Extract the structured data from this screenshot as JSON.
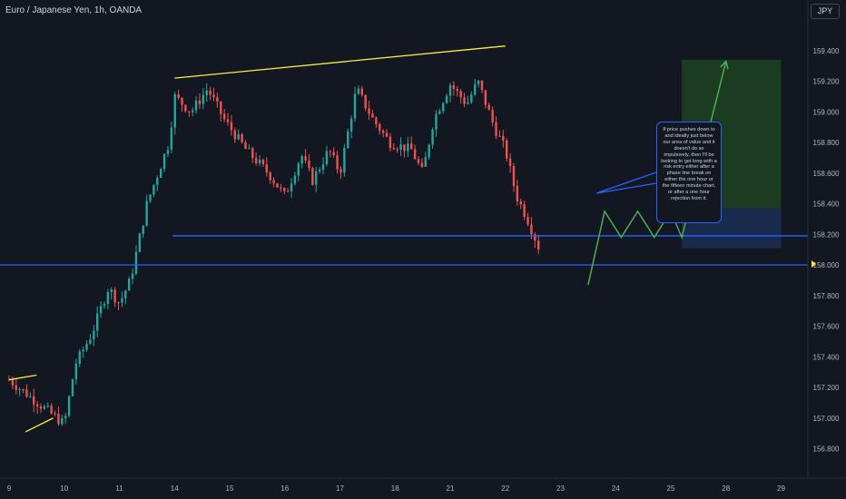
{
  "header": {
    "symbol_title": "Euro / Japanese Yen, 1h, OANDA",
    "currency_button": "JPY"
  },
  "annotation": {
    "note": "If price pushes down to and ideally just below our area of value and it doesn't do so impulsively, then I'll be looking to get long with a risk entry either after a phase line break on either the one hour or the fifteen minute chart, or after a one hour rejection from it."
  },
  "colors": {
    "background": "#131722",
    "bull_candle": "#26a69a",
    "bear_candle": "#ef5350",
    "trendline": "#ffeb3b",
    "horizontal_level": "#2962ff",
    "projection": "#4caf50",
    "target_zone": "#1e4620",
    "stop_zone": "#1c2c52"
  },
  "chart_data": {
    "type": "candlestick",
    "title": "Euro / Japanese Yen, 1h, OANDA",
    "y_unit": "JPY",
    "ylim": [
      156.75,
      159.5
    ],
    "y_ticks": [
      "159.400",
      "159.200",
      "159.000",
      "158.800",
      "158.600",
      "158.400",
      "158.200",
      "158.000",
      "157.800",
      "157.600",
      "157.400",
      "157.200",
      "157.000",
      "156.800"
    ],
    "x_ticks": [
      "9",
      "10",
      "11",
      "14",
      "15",
      "16",
      "17",
      "18",
      "21",
      "22",
      "23",
      "24",
      "25",
      "28",
      "29"
    ],
    "price_path": [
      {
        "x": 0.0,
        "price": 157.25
      },
      {
        "x": 1.0,
        "price": 156.96
      },
      {
        "x": 1.2,
        "price": 157.35
      },
      {
        "x": 1.5,
        "price": 157.55
      },
      {
        "x": 1.8,
        "price": 157.85
      },
      {
        "x": 2.0,
        "price": 157.75
      },
      {
        "x": 2.2,
        "price": 157.9
      },
      {
        "x": 2.5,
        "price": 158.4
      },
      {
        "x": 2.9,
        "price": 158.8
      },
      {
        "x": 3.0,
        "price": 159.1
      },
      {
        "x": 3.3,
        "price": 159.0
      },
      {
        "x": 3.6,
        "price": 159.15
      },
      {
        "x": 3.9,
        "price": 158.95
      },
      {
        "x": 4.3,
        "price": 158.75
      },
      {
        "x": 4.7,
        "price": 158.6
      },
      {
        "x": 5.0,
        "price": 158.45
      },
      {
        "x": 5.3,
        "price": 158.72
      },
      {
        "x": 5.5,
        "price": 158.55
      },
      {
        "x": 5.8,
        "price": 158.75
      },
      {
        "x": 6.0,
        "price": 158.6
      },
      {
        "x": 6.3,
        "price": 159.15
      },
      {
        "x": 6.6,
        "price": 158.95
      },
      {
        "x": 6.9,
        "price": 158.8
      },
      {
        "x": 7.3,
        "price": 158.75
      },
      {
        "x": 7.5,
        "price": 158.6
      },
      {
        "x": 7.7,
        "price": 158.95
      },
      {
        "x": 8.0,
        "price": 159.18
      },
      {
        "x": 8.3,
        "price": 159.05
      },
      {
        "x": 8.5,
        "price": 159.2
      },
      {
        "x": 8.8,
        "price": 158.9
      },
      {
        "x": 9.0,
        "price": 158.75
      },
      {
        "x": 9.2,
        "price": 158.45
      },
      {
        "x": 9.4,
        "price": 158.3
      },
      {
        "x": 9.6,
        "price": 158.12
      }
    ],
    "trendlines": [
      {
        "kind": "rising wedge top",
        "from": {
          "x": 3.0,
          "price": 159.22
        },
        "to": {
          "x": 9.0,
          "price": 159.43
        }
      },
      {
        "kind": "left channel top",
        "from": {
          "x": 0.0,
          "price": 157.25
        },
        "to": {
          "x": 0.5,
          "price": 157.28
        }
      },
      {
        "kind": "left channel bottom",
        "from": {
          "x": 0.3,
          "price": 156.91
        },
        "to": {
          "x": 0.8,
          "price": 157.0
        }
      }
    ],
    "horizontal_levels": [
      158.19,
      158.0
    ],
    "long_position": {
      "entry": 158.18,
      "target": 159.34,
      "stop": 158.37
    },
    "projection_path": [
      {
        "x": 10.5,
        "price": 157.87
      },
      {
        "x": 10.8,
        "price": 158.35
      },
      {
        "x": 11.1,
        "price": 158.18
      },
      {
        "x": 11.4,
        "price": 158.35
      },
      {
        "x": 11.7,
        "price": 158.18
      },
      {
        "x": 12.0,
        "price": 158.35
      },
      {
        "x": 12.2,
        "price": 158.18
      },
      {
        "x": 13.0,
        "price": 159.33
      }
    ],
    "grid": false,
    "legend": "none"
  }
}
